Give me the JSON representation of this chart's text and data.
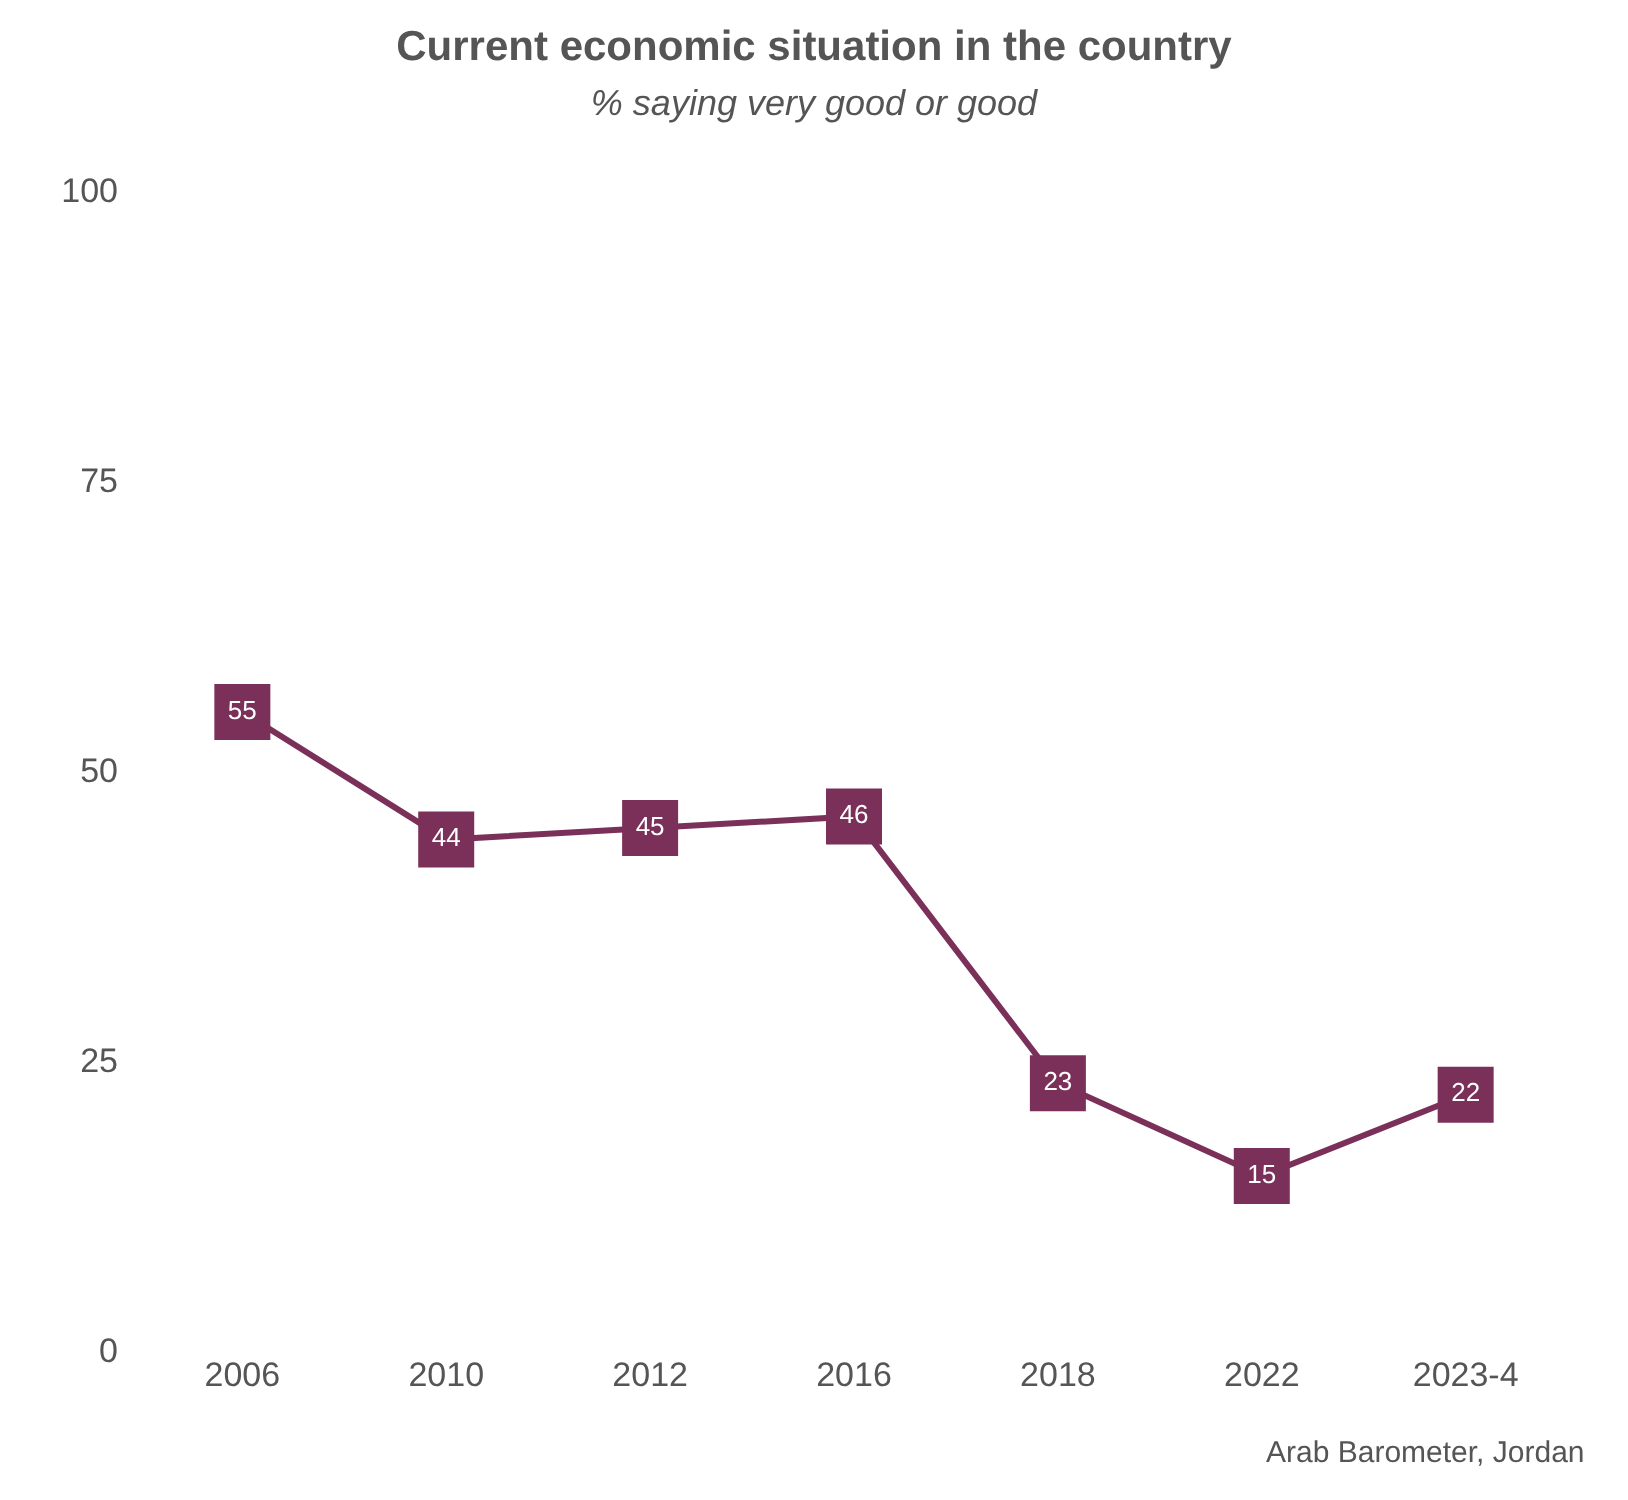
{
  "chart_data": {
    "type": "line",
    "title": "Current economic situation in the country",
    "subtitle": "% saying very good or good",
    "categories": [
      "2006",
      "2010",
      "2012",
      "2016",
      "2018",
      "2022",
      "2023-4"
    ],
    "series": [
      {
        "color": "#7b3059",
        "values": [
          55,
          44,
          45,
          46,
          23,
          15,
          22
        ]
      }
    ],
    "ylim": [
      0,
      100
    ],
    "yticks": [
      0,
      25,
      50,
      75,
      100
    ],
    "marker": "square",
    "line_style": "solid",
    "data_labels": true,
    "annotations": [
      "Arab Barometer, Jordan"
    ]
  }
}
